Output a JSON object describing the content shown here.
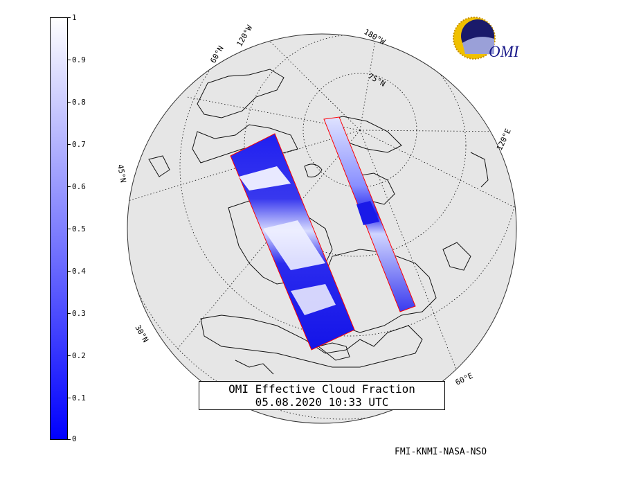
{
  "colorbar": {
    "ticks": [
      "1",
      "0.9",
      "0.8",
      "0.7",
      "0.6",
      "0.5",
      "0.4",
      "0.3",
      "0.2",
      "0.1",
      "0"
    ],
    "range": [
      0,
      1
    ],
    "color_low": "#0000ff",
    "color_high": "#ffffff"
  },
  "title": {
    "line1": "OMI Effective Cloud Fraction",
    "line2": "05.08.2020 10:33 UTC"
  },
  "credit": "FMI-KNMI-NASA-NSO",
  "logo": {
    "text": "OMI"
  },
  "grid_labels": {
    "lon_120w": "120°W",
    "lon_180w": "180°W",
    "lon_120e": "120°E",
    "lon_60e": "60°E",
    "lat_60n": "60°N",
    "lat_75n": "75°N",
    "lat_30n": "30°N",
    "lat_45n": "45°N"
  },
  "colors": {
    "globe": "#e6e6e6",
    "swath_border": "#ff0000",
    "cloud_dense": "#ffffff",
    "cloud_clear": "#1010e0"
  }
}
